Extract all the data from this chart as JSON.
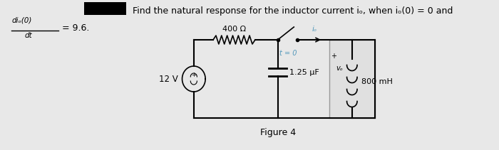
{
  "bg_color": "#e8e8e8",
  "title_text": "Find the natural response for the inductor current iₒ, when iₒ(0) = 0 and",
  "fraction_num": "diₒ(0)",
  "fraction_den": "dt",
  "fraction_val": "= 9.6.",
  "resistor_label": "400 Ω",
  "capacitor_label": "1.25 μF",
  "inductor_label": "800 mH",
  "voltage_label": "12 V",
  "figure_label": "Figure 4",
  "switch_label": "t = 0",
  "io_label": "iₒ",
  "vo_label": "vₒ"
}
